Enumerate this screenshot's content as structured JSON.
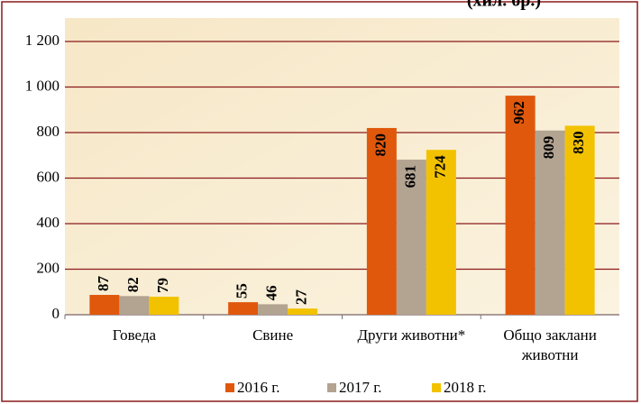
{
  "chart_data": {
    "type": "bar",
    "title": "(хил. бр.)",
    "categories": [
      "Говеда",
      "Свине",
      "Други животни*",
      "Общо заклани животни"
    ],
    "series": [
      {
        "name": "2016 г.",
        "color": "#e0580c",
        "values": [
          87,
          55,
          820,
          962
        ]
      },
      {
        "name": "2017 г.",
        "color": "#b3a391",
        "values": [
          82,
          46,
          681,
          809
        ]
      },
      {
        "name": "2018 г.",
        "color": "#f2c200",
        "values": [
          79,
          27,
          724,
          830
        ]
      }
    ],
    "ylim": [
      0,
      1200
    ],
    "yticks": [
      0,
      200,
      400,
      600,
      800,
      {
        "value": 1000,
        "label": "1 000"
      },
      {
        "value": 1200,
        "label": "1 200"
      }
    ],
    "grid": true,
    "legend": "bottom"
  }
}
